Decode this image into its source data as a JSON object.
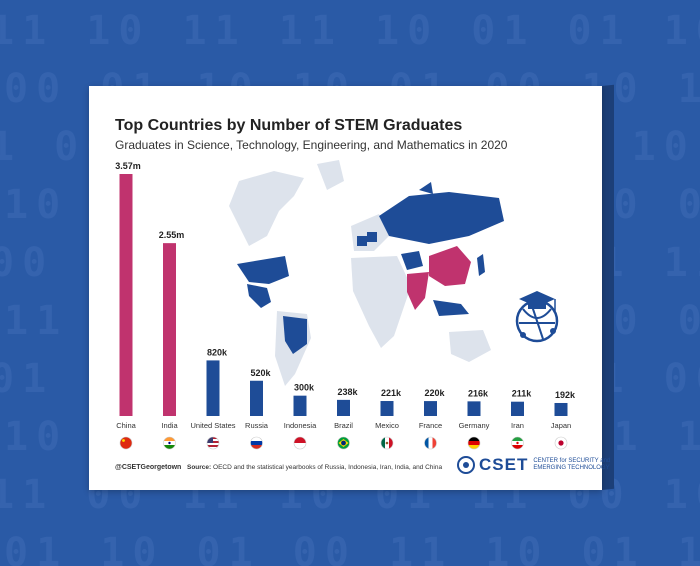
{
  "background_rows": [
    "11 10 11 11 10 01 01 10 11 1",
    "00 01 10 10 01 00 10 11 01 00",
    "1 00 11 01 10 11 00 10 01 01",
    "10 01 00 11 10 01 10 00 11 10",
    "00 10 11 01 00 10 01 11 10 0",
    "11 01 10 00 11 01 10 01 00 11",
    "01 10 00 11 10 01 11 00 10 01",
    "10 11 01 10 00 11 01 10 11 00",
    "11 00 11 10 01 11 00 10 11 10",
    "01 10 01 00 11 10 01 11 00 01"
  ],
  "colors": {
    "background": "#2a5aa6",
    "highlight": "#c0336e",
    "bar": "#1e4c97",
    "map_gray": "#dde3ec"
  },
  "chart_data": {
    "type": "bar",
    "title": "Top Countries by Number of STEM Graduates",
    "subtitle": "Graduates in Science, Technology, Engineering, and Mathematics in 2020",
    "categories": [
      "China",
      "India",
      "United States",
      "Russia",
      "Indonesia",
      "Brazil",
      "Mexico",
      "France",
      "Germany",
      "Iran",
      "Japan"
    ],
    "values": [
      3570000,
      2550000,
      820000,
      520000,
      300000,
      238000,
      221000,
      220000,
      216000,
      211000,
      192000
    ],
    "data_labels": [
      "3.57m",
      "2.55m",
      "820k",
      "520k",
      "300k",
      "238k",
      "221k",
      "220k",
      "216k",
      "211k",
      "192k"
    ],
    "highlighted": [
      "China",
      "India"
    ],
    "flags": [
      "china-flag-icon",
      "india-flag-icon",
      "usa-flag-icon",
      "russia-flag-icon",
      "indonesia-flag-icon",
      "brazil-flag-icon",
      "mexico-flag-icon",
      "france-flag-icon",
      "germany-flag-icon",
      "iran-flag-icon",
      "japan-flag-icon"
    ],
    "ylim": [
      0,
      3570000
    ],
    "grid": false,
    "legend": "none"
  },
  "footer": {
    "handle": "@CSETGeorgetown",
    "source_label": "Source:",
    "source_text": "OECD and the statistical yearbooks of Russia, Indonesia, Iran, India, and China"
  },
  "logo": {
    "name": "CSET",
    "tagline": "CENTER for SECURITY and EMERGING TECHNOLOGY"
  },
  "icons": {
    "map": "world-map-icon",
    "emblem": "graduation-cap-globe-icon"
  }
}
